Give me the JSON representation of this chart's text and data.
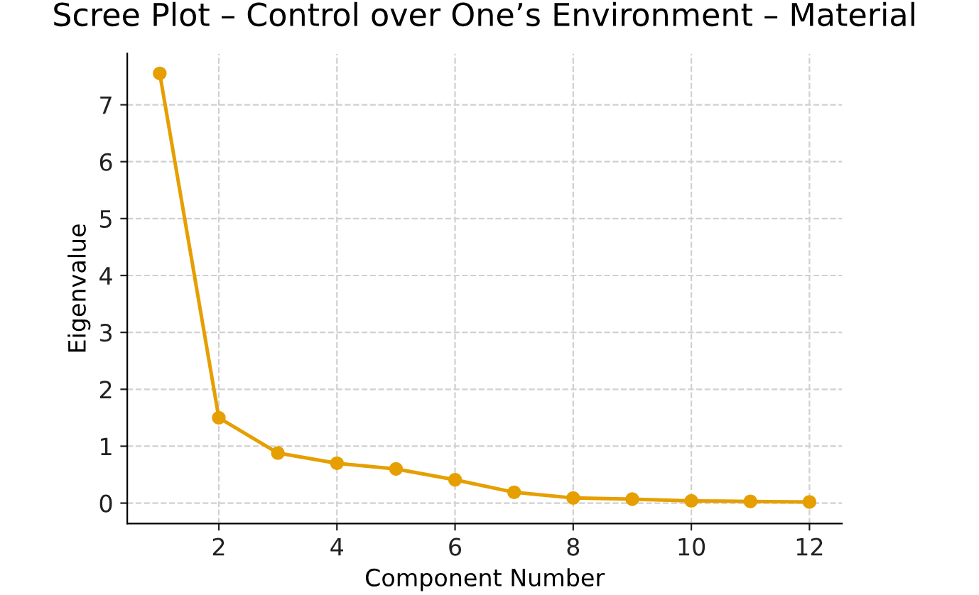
{
  "chart_data": {
    "type": "line",
    "title": "Scree Plot – Control over One’s Environment – Material",
    "xlabel": "Component Number",
    "ylabel": "Eigenvalue",
    "x": [
      1,
      2,
      3,
      4,
      5,
      6,
      7,
      8,
      9,
      10,
      11,
      12
    ],
    "series": [
      {
        "color": "#e69f00",
        "values": [
          7.55,
          1.5,
          0.88,
          0.7,
          0.6,
          0.41,
          0.19,
          0.09,
          0.07,
          0.04,
          0.03,
          0.02
        ]
      }
    ],
    "xlim": [
      0.45,
      12.55
    ],
    "ylim": [
      -0.36,
      7.9
    ],
    "xticks": [
      2,
      4,
      6,
      8,
      10,
      12
    ],
    "yticks": [
      0,
      1,
      2,
      3,
      4,
      5,
      6,
      7
    ],
    "grid": true,
    "marker": "circle",
    "line_style": "solid"
  }
}
